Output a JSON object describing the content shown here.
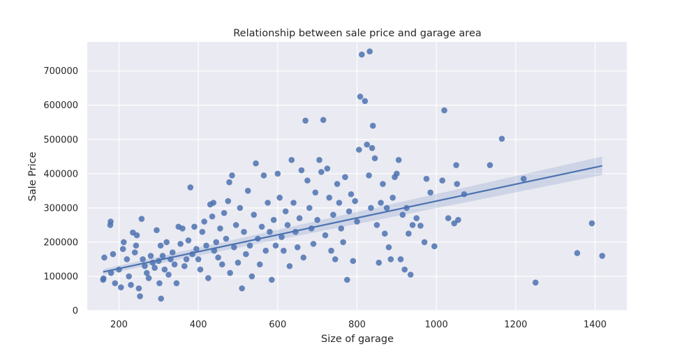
{
  "chart_data": {
    "type": "scatter",
    "title": "Relationship between sale price and garage area",
    "xlabel": "Size of garage",
    "ylabel": "Sale Price",
    "xlim": [
      120,
      1480
    ],
    "ylim": [
      0,
      785000
    ],
    "xticks": [
      200,
      400,
      600,
      800,
      1000,
      1200,
      1400
    ],
    "yticks": [
      0,
      100000,
      200000,
      300000,
      400000,
      500000,
      600000,
      700000
    ],
    "grid": true,
    "legend": "none",
    "colors": {
      "background": "#eaeaf2",
      "grid": "#ffffff",
      "point": "#4c72b0",
      "line": "#4c72b0",
      "band": "#4c72b0"
    },
    "regression": {
      "x": [
        160,
        1418
      ],
      "y": [
        113000,
        423000
      ],
      "ci_upper": [
        121000,
        450000
      ],
      "ci_lower": [
        105000,
        396000
      ]
    },
    "points": [
      [
        160,
        90000
      ],
      [
        161,
        94000
      ],
      [
        163,
        155000
      ],
      [
        178,
        250000
      ],
      [
        179,
        260000
      ],
      [
        180,
        110000
      ],
      [
        185,
        165000
      ],
      [
        190,
        80000
      ],
      [
        200,
        120000
      ],
      [
        205,
        68000
      ],
      [
        210,
        180000
      ],
      [
        212,
        200000
      ],
      [
        220,
        150000
      ],
      [
        225,
        100000
      ],
      [
        230,
        75000
      ],
      [
        235,
        228000
      ],
      [
        240,
        170000
      ],
      [
        243,
        190000
      ],
      [
        245,
        220000
      ],
      [
        250,
        65000
      ],
      [
        253,
        42000
      ],
      [
        257,
        268000
      ],
      [
        260,
        150000
      ],
      [
        265,
        130000
      ],
      [
        270,
        110000
      ],
      [
        275,
        95000
      ],
      [
        280,
        160000
      ],
      [
        285,
        140000
      ],
      [
        290,
        125000
      ],
      [
        295,
        235000
      ],
      [
        300,
        145000
      ],
      [
        302,
        80000
      ],
      [
        305,
        190000
      ],
      [
        306,
        35000
      ],
      [
        310,
        160000
      ],
      [
        315,
        120000
      ],
      [
        320,
        200000
      ],
      [
        325,
        105000
      ],
      [
        330,
        150000
      ],
      [
        335,
        170000
      ],
      [
        340,
        135000
      ],
      [
        345,
        80000
      ],
      [
        350,
        245000
      ],
      [
        355,
        195000
      ],
      [
        360,
        240000
      ],
      [
        365,
        130000
      ],
      [
        370,
        150000
      ],
      [
        375,
        205000
      ],
      [
        380,
        360000
      ],
      [
        385,
        165000
      ],
      [
        390,
        245000
      ],
      [
        395,
        180000
      ],
      [
        400,
        150000
      ],
      [
        405,
        120000
      ],
      [
        410,
        230000
      ],
      [
        415,
        260000
      ],
      [
        420,
        190000
      ],
      [
        425,
        95000
      ],
      [
        430,
        310000
      ],
      [
        435,
        275000
      ],
      [
        438,
        315000
      ],
      [
        440,
        175000
      ],
      [
        445,
        200000
      ],
      [
        450,
        155000
      ],
      [
        455,
        240000
      ],
      [
        460,
        135000
      ],
      [
        465,
        285000
      ],
      [
        470,
        210000
      ],
      [
        475,
        320000
      ],
      [
        478,
        375000
      ],
      [
        480,
        110000
      ],
      [
        485,
        395000
      ],
      [
        490,
        185000
      ],
      [
        495,
        250000
      ],
      [
        500,
        140000
      ],
      [
        505,
        300000
      ],
      [
        510,
        65000
      ],
      [
        515,
        230000
      ],
      [
        520,
        165000
      ],
      [
        525,
        350000
      ],
      [
        530,
        190000
      ],
      [
        535,
        100000
      ],
      [
        540,
        280000
      ],
      [
        545,
        430000
      ],
      [
        550,
        210000
      ],
      [
        555,
        135000
      ],
      [
        560,
        245000
      ],
      [
        565,
        395000
      ],
      [
        570,
        175000
      ],
      [
        575,
        315000
      ],
      [
        580,
        230000
      ],
      [
        585,
        90000
      ],
      [
        590,
        265000
      ],
      [
        595,
        190000
      ],
      [
        600,
        400000
      ],
      [
        605,
        330000
      ],
      [
        610,
        215000
      ],
      [
        615,
        175000
      ],
      [
        620,
        290000
      ],
      [
        625,
        250000
      ],
      [
        630,
        130000
      ],
      [
        635,
        440000
      ],
      [
        640,
        315000
      ],
      [
        645,
        230000
      ],
      [
        650,
        185000
      ],
      [
        655,
        270000
      ],
      [
        660,
        410000
      ],
      [
        665,
        155000
      ],
      [
        670,
        555000
      ],
      [
        675,
        380000
      ],
      [
        680,
        300000
      ],
      [
        685,
        240000
      ],
      [
        690,
        195000
      ],
      [
        695,
        345000
      ],
      [
        700,
        265000
      ],
      [
        705,
        440000
      ],
      [
        710,
        405000
      ],
      [
        715,
        557000
      ],
      [
        720,
        220000
      ],
      [
        725,
        415000
      ],
      [
        730,
        330000
      ],
      [
        735,
        175000
      ],
      [
        740,
        280000
      ],
      [
        745,
        150000
      ],
      [
        750,
        370000
      ],
      [
        755,
        315000
      ],
      [
        760,
        240000
      ],
      [
        765,
        200000
      ],
      [
        770,
        390000
      ],
      [
        775,
        90000
      ],
      [
        780,
        290000
      ],
      [
        785,
        340000
      ],
      [
        790,
        145000
      ],
      [
        795,
        320000
      ],
      [
        800,
        260000
      ],
      [
        805,
        470000
      ],
      [
        808,
        625000
      ],
      [
        812,
        748000
      ],
      [
        820,
        612000
      ],
      [
        825,
        485000
      ],
      [
        830,
        395000
      ],
      [
        832,
        757000
      ],
      [
        835,
        300000
      ],
      [
        838,
        475000
      ],
      [
        840,
        540000
      ],
      [
        845,
        445000
      ],
      [
        850,
        250000
      ],
      [
        855,
        140000
      ],
      [
        860,
        315000
      ],
      [
        865,
        370000
      ],
      [
        870,
        225000
      ],
      [
        875,
        300000
      ],
      [
        880,
        185000
      ],
      [
        885,
        150000
      ],
      [
        890,
        330000
      ],
      [
        895,
        390000
      ],
      [
        900,
        400000
      ],
      [
        905,
        440000
      ],
      [
        910,
        150000
      ],
      [
        915,
        280000
      ],
      [
        920,
        120000
      ],
      [
        925,
        300000
      ],
      [
        930,
        225000
      ],
      [
        935,
        105000
      ],
      [
        940,
        250000
      ],
      [
        950,
        270000
      ],
      [
        960,
        248000
      ],
      [
        970,
        200000
      ],
      [
        975,
        385000
      ],
      [
        985,
        345000
      ],
      [
        995,
        188000
      ],
      [
        1015,
        380000
      ],
      [
        1020,
        585000
      ],
      [
        1030,
        270000
      ],
      [
        1045,
        255000
      ],
      [
        1050,
        425000
      ],
      [
        1052,
        370000
      ],
      [
        1055,
        265000
      ],
      [
        1070,
        340000
      ],
      [
        1135,
        425000
      ],
      [
        1165,
        502000
      ],
      [
        1220,
        385000
      ],
      [
        1250,
        82000
      ],
      [
        1355,
        168000
      ],
      [
        1392,
        255000
      ],
      [
        1418,
        160000
      ]
    ]
  }
}
